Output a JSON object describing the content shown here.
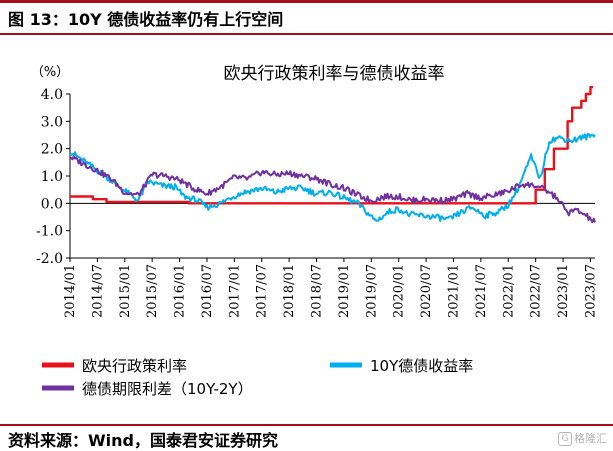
{
  "figure": {
    "title": "图 13：10Y 德债收益率仍有上行空间",
    "source": "资料来源：Wind，国泰君安证券研究",
    "watermark": "格隆汇"
  },
  "chart_data": {
    "type": "line",
    "title": "欧央行政策利率与德债收益率",
    "ylabel": "（%）",
    "xlabel": "",
    "ylim": [
      -2.0,
      4.0
    ],
    "yticks": [
      -2.0,
      -1.0,
      0.0,
      1.0,
      2.0,
      3.0,
      4.0
    ],
    "ytick_labels": [
      "-2.0",
      "-1.0",
      "0.0",
      "1.0",
      "2.0",
      "3.0",
      "4.0"
    ],
    "xlim": [
      "2014-01",
      "2023-08"
    ],
    "xtick_labels": [
      "2014/01",
      "2014/07",
      "2015/01",
      "2015/07",
      "2016/01",
      "2016/07",
      "2017/01",
      "2017/07",
      "2018/01",
      "2018/07",
      "2019/01",
      "2019/07",
      "2020/01",
      "2020/07",
      "2021/01",
      "2021/07",
      "2022/01",
      "2022/07",
      "2023/01",
      "2023/07"
    ],
    "grid": false,
    "legend_position": "bottom",
    "colors": {
      "policy_rate": "#e8101a",
      "bund_10y": "#00aeef",
      "spread": "#7030a0"
    },
    "series": [
      {
        "name": "欧央行政策利率",
        "key": "policy_rate",
        "step": true,
        "x": [
          "2014-01",
          "2014-06",
          "2014-09",
          "2016-03",
          "2022-07",
          "2022-09",
          "2022-11",
          "2023-02",
          "2023-03",
          "2023-05",
          "2023-06",
          "2023-07"
        ],
        "values": [
          0.25,
          0.15,
          0.05,
          0.0,
          0.5,
          1.25,
          2.0,
          3.0,
          3.5,
          3.75,
          4.0,
          4.25
        ]
      },
      {
        "name": "10Y德债收益率",
        "key": "bund_10y",
        "x": [
          "2014-01",
          "2014-04",
          "2014-07",
          "2014-10",
          "2015-01",
          "2015-04",
          "2015-06",
          "2015-09",
          "2015-12",
          "2016-02",
          "2016-05",
          "2016-07",
          "2016-10",
          "2016-12",
          "2017-03",
          "2017-07",
          "2017-10",
          "2018-01",
          "2018-04",
          "2018-07",
          "2018-10",
          "2019-01",
          "2019-04",
          "2019-08",
          "2019-11",
          "2020-01",
          "2020-03",
          "2020-06",
          "2020-09",
          "2020-12",
          "2021-03",
          "2021-05",
          "2021-08",
          "2021-11",
          "2022-01",
          "2022-03",
          "2022-06",
          "2022-08",
          "2022-10",
          "2022-12",
          "2023-03",
          "2023-05",
          "2023-08"
        ],
        "values": [
          1.9,
          1.55,
          1.2,
          0.85,
          0.45,
          0.1,
          0.8,
          0.65,
          0.6,
          0.25,
          0.1,
          -0.15,
          0.0,
          0.2,
          0.4,
          0.55,
          0.4,
          0.55,
          0.55,
          0.35,
          0.4,
          0.2,
          0.0,
          -0.65,
          -0.3,
          -0.2,
          -0.4,
          -0.45,
          -0.5,
          -0.6,
          -0.3,
          -0.15,
          -0.45,
          -0.3,
          -0.05,
          0.5,
          1.7,
          0.9,
          2.3,
          2.4,
          2.3,
          2.4,
          2.5
        ]
      },
      {
        "name": "德债期限利差（10Y-2Y）",
        "key": "spread",
        "x": [
          "2014-01",
          "2014-04",
          "2014-07",
          "2014-10",
          "2015-01",
          "2015-04",
          "2015-07",
          "2015-10",
          "2016-01",
          "2016-04",
          "2016-07",
          "2016-10",
          "2017-01",
          "2017-04",
          "2017-07",
          "2017-10",
          "2018-01",
          "2018-04",
          "2018-07",
          "2018-10",
          "2019-01",
          "2019-04",
          "2019-07",
          "2019-10",
          "2020-01",
          "2020-04",
          "2020-07",
          "2020-10",
          "2021-01",
          "2021-04",
          "2021-07",
          "2021-10",
          "2022-01",
          "2022-04",
          "2022-07",
          "2022-10",
          "2022-12",
          "2023-02",
          "2023-04",
          "2023-06",
          "2023-08"
        ],
        "values": [
          1.7,
          1.45,
          1.2,
          0.9,
          0.4,
          0.3,
          1.05,
          1.0,
          0.85,
          0.55,
          0.35,
          0.6,
          0.95,
          0.9,
          1.15,
          1.05,
          1.1,
          1.0,
          0.9,
          0.7,
          0.55,
          0.3,
          0.1,
          0.25,
          0.25,
          0.1,
          0.15,
          0.1,
          0.15,
          0.35,
          0.2,
          0.3,
          0.45,
          0.7,
          0.65,
          0.4,
          0.15,
          -0.35,
          -0.25,
          -0.45,
          -0.7
        ]
      }
    ]
  }
}
